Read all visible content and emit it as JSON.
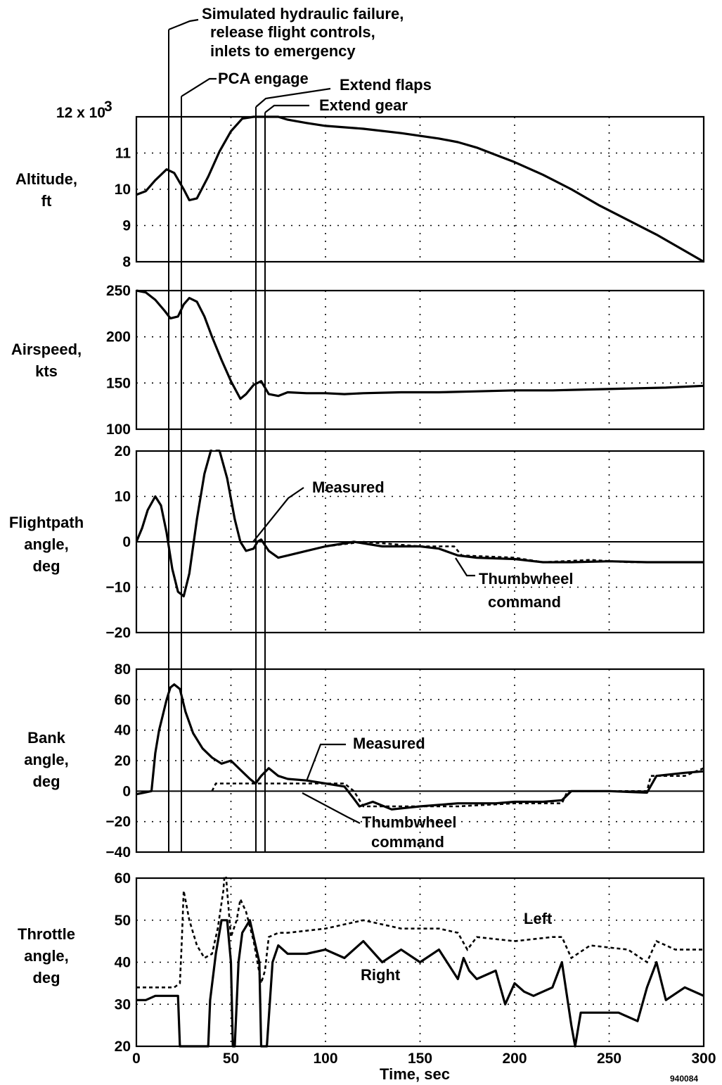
{
  "chart_data": {
    "type": "line",
    "xlabel": "Time, sec",
    "xlim": [
      0,
      300
    ],
    "xticks": [
      0,
      50,
      100,
      150,
      200,
      250,
      300
    ],
    "figure_id": "940084",
    "events": [
      {
        "t": 16,
        "label_lines": [
          "Simulated hydraulic failure,",
          "release flight controls,",
          "inlets to emergency"
        ]
      },
      {
        "t": 23,
        "label_lines": [
          "PCA engage"
        ]
      },
      {
        "t": 63,
        "label_lines": [
          "Extend flaps"
        ]
      },
      {
        "t": 67,
        "label_lines": [
          "Extend gear"
        ]
      }
    ],
    "panels": [
      {
        "ylabel_lines": [
          "Altitude,",
          "ft"
        ],
        "ylim": [
          8,
          12
        ],
        "yticks": [
          8,
          9,
          10,
          11,
          12
        ],
        "ytick_labels": [
          "8",
          "9",
          "10",
          "11",
          "12 x 10"
        ],
        "multiplier_exponent": "3",
        "series": [
          {
            "style": "solid",
            "x": [
              0,
              5,
              10,
              16,
              20,
              25,
              28,
              32,
              38,
              44,
              50,
              56,
              62,
              66,
              70,
              75,
              80,
              90,
              100,
              120,
              140,
              160,
              170,
              180,
              190,
              200,
              215,
              230,
              245,
              260,
              275,
              290,
              300
            ],
            "y": [
              9.85,
              9.95,
              10.25,
              10.55,
              10.45,
              10.0,
              9.7,
              9.75,
              10.35,
              11.05,
              11.6,
              11.95,
              12.0,
              12.0,
              12.0,
              12.0,
              11.92,
              11.83,
              11.75,
              11.67,
              11.55,
              11.4,
              11.3,
              11.15,
              10.95,
              10.75,
              10.4,
              10.0,
              9.55,
              9.15,
              8.75,
              8.3,
              8.0
            ]
          }
        ]
      },
      {
        "ylabel_lines": [
          "Airspeed,",
          "kts"
        ],
        "ylim": [
          100,
          250
        ],
        "yticks": [
          100,
          150,
          200,
          250
        ],
        "ytick_labels": [
          "100",
          "150",
          "200",
          "250"
        ],
        "series": [
          {
            "style": "solid",
            "x": [
              0,
              5,
              10,
              15,
              18,
              22,
              25,
              28,
              32,
              36,
              40,
              45,
              50,
              55,
              58,
              62,
              66,
              70,
              75,
              80,
              90,
              100,
              110,
              120,
              140,
              160,
              180,
              200,
              220,
              240,
              260,
              280,
              300
            ],
            "y": [
              250,
              248,
              240,
              228,
              220,
              222,
              235,
              242,
              238,
              222,
              200,
              175,
              152,
              133,
              138,
              148,
              152,
              138,
              136,
              140,
              139,
              139,
              138,
              139,
              140,
              140,
              141,
              142,
              142,
              143,
              144,
              145,
              147
            ]
          }
        ]
      },
      {
        "ylabel_lines": [
          "Flightpath",
          "angle,",
          "deg"
        ],
        "ylim": [
          -20,
          20
        ],
        "yticks": [
          -20,
          -10,
          0,
          10,
          20
        ],
        "ytick_labels": [
          "−20",
          "−10",
          "0",
          "10",
          "20"
        ],
        "annotations": [
          "Measured",
          "Thumbwheel",
          "command"
        ],
        "series": [
          {
            "style": "solid",
            "name": "Measured",
            "x": [
              0,
              3,
              6,
              10,
              13,
              16,
              19,
              22,
              25,
              28,
              32,
              36,
              40,
              44,
              48,
              52,
              55,
              58,
              62,
              64,
              66,
              70,
              75,
              80,
              90,
              100,
              115,
              130,
              150,
              160,
              170,
              180,
              200,
              215,
              230,
              250,
              270,
              300
            ],
            "y": [
              0,
              3,
              7,
              10,
              8,
              2,
              -6,
              -11,
              -12,
              -7,
              5,
              15,
              21,
              20,
              14,
              5,
              0,
              -2,
              -1.5,
              0,
              0.5,
              -2,
              -3.5,
              -3,
              -2,
              -1,
              0,
              -1,
              -1,
              -1.5,
              -3,
              -3.5,
              -3.8,
              -4.5,
              -4.5,
              -4.3,
              -4.5,
              -4.5
            ]
          },
          {
            "style": "dashed",
            "name": "Thumbwheel command",
            "x": [
              100,
              120,
              135,
              150,
              168,
              172,
              200,
              215,
              240,
              260,
              300
            ],
            "y": [
              -1,
              0,
              -0.5,
              -1,
              -1,
              -3,
              -3.5,
              -4.5,
              -4,
              -4.5,
              -4.5
            ]
          }
        ]
      },
      {
        "ylabel_lines": [
          "Bank",
          "angle,",
          "deg"
        ],
        "ylim": [
          -40,
          80
        ],
        "yticks": [
          -40,
          -20,
          0,
          20,
          40,
          60,
          80
        ],
        "ytick_labels": [
          "−40",
          "−20",
          "0",
          "20",
          "40",
          "60",
          "80"
        ],
        "annotations": [
          "Measured",
          "Thumbwheel",
          "command"
        ],
        "series": [
          {
            "style": "solid",
            "name": "Measured",
            "x": [
              0,
              4,
              8,
              10,
              12,
              14,
              16,
              18,
              20,
              23,
              26,
              30,
              35,
              40,
              45,
              50,
              55,
              60,
              63,
              66,
              70,
              75,
              80,
              90,
              100,
              110,
              115,
              118,
              125,
              135,
              150,
              170,
              190,
              200,
              215,
              225,
              230,
              250,
              270,
              275,
              290,
              300
            ],
            "y": [
              -2,
              -1,
              0,
              25,
              40,
              50,
              60,
              68,
              70,
              67,
              52,
              38,
              28,
              22,
              18,
              20,
              14,
              8,
              5,
              10,
              15,
              10,
              8,
              7,
              5,
              3,
              -5,
              -10,
              -7,
              -12,
              -10,
              -8,
              -8,
              -7,
              -7,
              -6,
              0,
              0,
              -1,
              10,
              12,
              13
            ]
          },
          {
            "style": "dashed",
            "name": "Thumbwheel command",
            "x": [
              40,
              42,
              50,
              55,
              60,
              63,
              70,
              80,
              100,
              110,
              115,
              120,
              130,
              150,
              170,
              200,
              225,
              228,
              250,
              270,
              272,
              290,
              300
            ],
            "y": [
              0,
              5,
              5,
              5,
              5,
              5,
              5,
              5,
              5,
              5,
              0,
              -10,
              -10,
              -10,
              -10,
              -8,
              -8,
              0,
              0,
              0,
              10,
              10,
              15
            ]
          }
        ]
      },
      {
        "ylabel_lines": [
          "Throttle",
          "angle,",
          "deg"
        ],
        "ylim": [
          20,
          60
        ],
        "yticks": [
          20,
          30,
          40,
          50,
          60
        ],
        "ytick_labels": [
          "20",
          "30",
          "40",
          "50",
          "60"
        ],
        "annotations": [
          "Left",
          "Right"
        ],
        "series": [
          {
            "style": "dashed",
            "name": "Left",
            "x": [
              0,
              20,
              23,
              24,
              25,
              28,
              32,
              36,
              40,
              43,
              46,
              47,
              48,
              50,
              53,
              55,
              58,
              62,
              64,
              66,
              68,
              70,
              75,
              80,
              100,
              120,
              140,
              160,
              170,
              175,
              180,
              200,
              220,
              225,
              230,
              240,
              260,
              270,
              275,
              285,
              300
            ],
            "y": [
              34,
              34,
              35,
              45,
              57,
              50,
              44,
              41,
              42,
              48,
              57,
              63,
              57,
              46,
              50,
              55,
              52,
              45,
              40,
              35,
              38,
              46,
              47,
              47,
              48,
              50,
              48,
              48,
              47,
              43,
              46,
              45,
              46,
              46,
              41,
              44,
              43,
              40,
              45,
              43,
              43
            ]
          },
          {
            "style": "solid",
            "name": "Right",
            "x": [
              0,
              5,
              10,
              22,
              23,
              24,
              38,
              39,
              42,
              45,
              48,
              50,
              51,
              52,
              54,
              56,
              60,
              65,
              66,
              67,
              68,
              69,
              72,
              75,
              80,
              90,
              100,
              110,
              120,
              130,
              140,
              150,
              160,
              170,
              173,
              176,
              180,
              190,
              195,
              200,
              205,
              210,
              220,
              225,
              230,
              232,
              235,
              245,
              255,
              265,
              270,
              275,
              280,
              290,
              300
            ],
            "y": [
              31,
              31,
              32,
              32,
              20,
              20,
              20,
              31,
              42,
              50,
              50,
              40,
              20,
              20,
              40,
              47,
              50,
              40,
              20,
              20,
              20,
              20,
              40,
              44,
              42,
              42,
              43,
              41,
              45,
              40,
              43,
              40,
              43,
              36,
              41,
              38,
              36,
              38,
              30,
              35,
              33,
              32,
              34,
              40,
              25,
              20,
              28,
              28,
              28,
              26,
              34,
              40,
              31,
              34,
              32
            ]
          }
        ]
      }
    ]
  }
}
